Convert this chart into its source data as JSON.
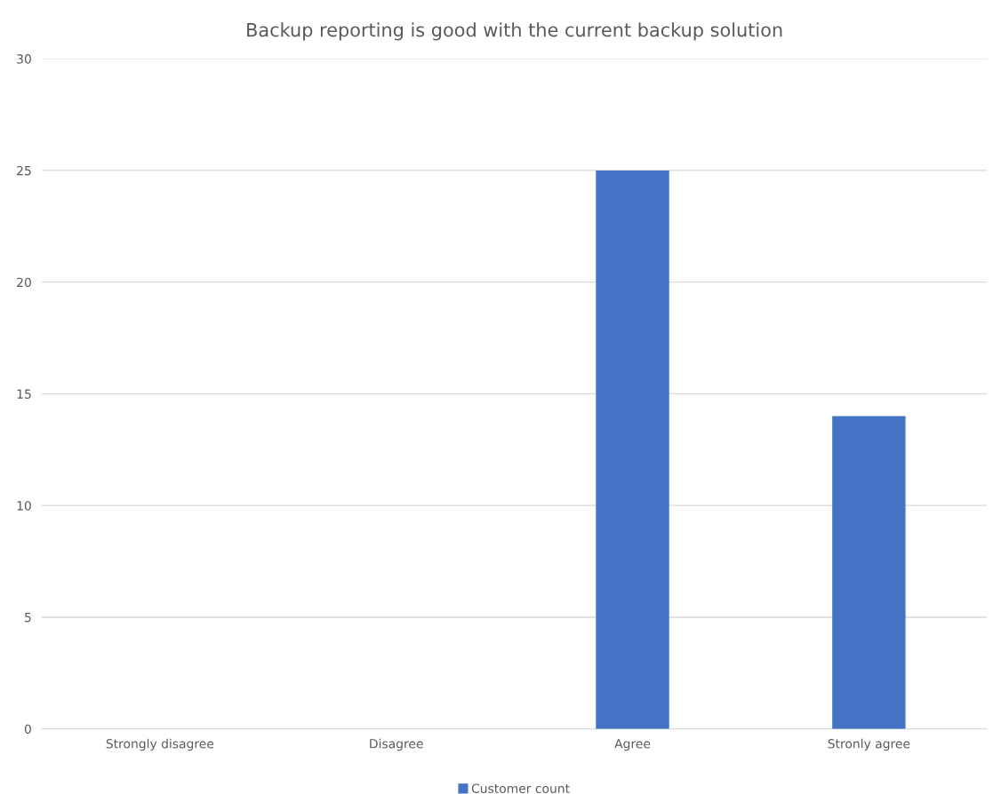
{
  "chart_data": {
    "type": "bar",
    "title": "Backup reporting is good with the current backup solution",
    "categories": [
      "Strongly disagree",
      "Disagree",
      "Agree",
      "Stronly agree"
    ],
    "series": [
      {
        "name": "Customer count",
        "color": "#4472c4",
        "values": [
          0,
          0,
          25,
          14
        ]
      }
    ],
    "ylim": [
      0,
      30
    ],
    "yticks": [
      0,
      5,
      10,
      15,
      20,
      25,
      30
    ],
    "grid": "y",
    "legend": "bottom"
  }
}
